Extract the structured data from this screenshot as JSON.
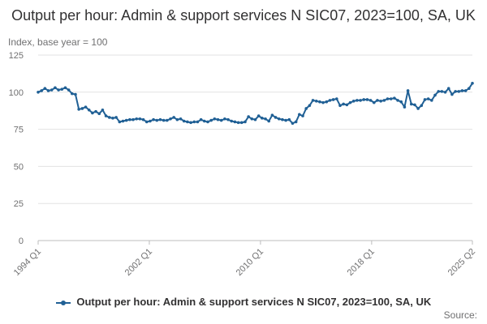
{
  "title": "Output per hour: Admin & support services N SIC07, 2023=100, SA, UK",
  "y_axis_caption": "Index, base year = 100",
  "legend_label": "Output per hour: Admin & support services N SIC07, 2023=100, SA, UK",
  "source_label": "Source:",
  "series_color": "#206095",
  "chart_data": {
    "type": "line",
    "title": "Output per hour: Admin & support services N SIC07, 2023=100, SA, UK",
    "ylabel": "Index, base year = 100",
    "xlabel": "",
    "ylim": [
      0,
      125
    ],
    "yticks": [
      0,
      25,
      50,
      75,
      100,
      125
    ],
    "xticks": [
      "1994 Q1",
      "2002 Q1",
      "2010 Q1",
      "2018 Q1",
      "2025 Q2"
    ],
    "x_start": "1994 Q1",
    "x_end": "2025 Q2",
    "grid": true,
    "legend_position": "bottom",
    "series": [
      {
        "name": "Output per hour: Admin & support services N SIC07, 2023=100, SA, UK",
        "values": [
          100,
          101,
          102.5,
          101,
          101.5,
          103,
          101.5,
          102,
          103,
          101.5,
          99,
          98.5,
          88.5,
          89,
          90,
          88,
          86,
          87,
          85.5,
          88,
          84,
          83,
          82.5,
          83,
          80,
          80.5,
          81,
          81.5,
          81.5,
          82,
          82,
          81.5,
          80,
          80.5,
          81.5,
          81,
          81.5,
          81,
          81,
          82,
          83,
          81.5,
          82,
          80.5,
          80,
          79.5,
          80,
          80,
          81.5,
          80.5,
          80,
          81,
          82,
          81.5,
          81,
          82,
          81.5,
          80.5,
          80,
          79.5,
          79.5,
          80,
          83.5,
          82,
          81.5,
          84,
          82.5,
          82,
          80.5,
          84.5,
          83,
          82,
          81.5,
          81,
          81.5,
          79,
          80,
          85,
          84,
          89,
          91,
          94.5,
          94,
          93.5,
          93,
          93.5,
          94.5,
          95,
          95.5,
          91,
          92,
          91.5,
          93,
          94,
          94.5,
          94.5,
          95,
          95,
          94.5,
          93,
          94.5,
          94,
          94.5,
          95.5,
          95.5,
          96,
          94.5,
          93.5,
          90,
          101,
          92,
          91.5,
          89,
          91,
          95,
          95.5,
          94.5,
          98,
          100.5,
          100.5,
          100,
          102.5,
          98.5,
          100.5,
          100.5,
          101,
          101,
          102.5,
          106
        ]
      }
    ]
  }
}
